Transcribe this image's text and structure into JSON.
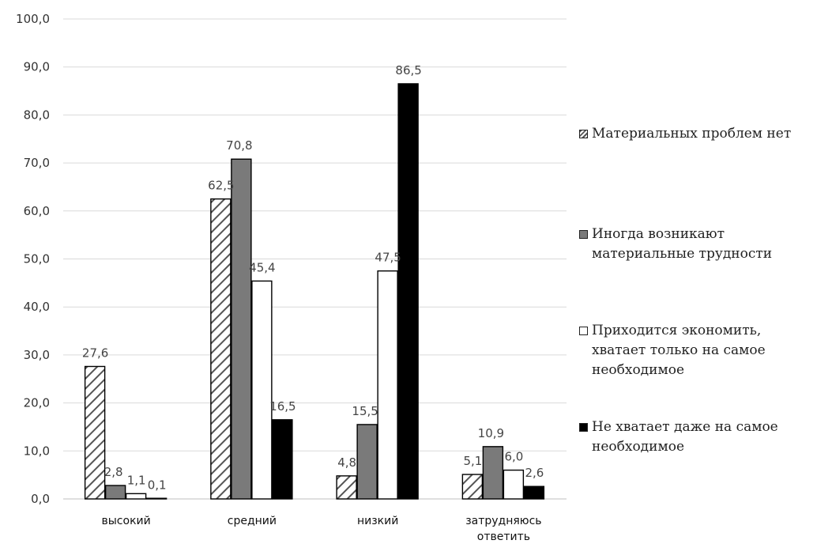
{
  "chart_data": {
    "type": "bar",
    "categories": [
      "высокий",
      "средний",
      "низкий",
      "затрудняюсь\nответить"
    ],
    "series": [
      {
        "name": "Материальных проблем нет",
        "values": [
          27.6,
          62.5,
          4.8,
          5.1
        ],
        "labels": [
          "27,6",
          "62,5",
          "4,8",
          "5,1"
        ],
        "pattern": "hatch",
        "color": "#ffffff"
      },
      {
        "name": "Иногда возникают\nматериальные трудности",
        "values": [
          2.8,
          70.8,
          15.5,
          10.9
        ],
        "labels": [
          "2,8",
          "70,8",
          "15,5",
          "10,9"
        ],
        "pattern": "solid",
        "color": "#7a7a7a"
      },
      {
        "name": "Приходится экономить,\nхватает только на самое\nнеобходимое",
        "values": [
          1.1,
          45.4,
          47.5,
          6.0
        ],
        "labels": [
          "1,1",
          "45,4",
          "47,5",
          "6,0"
        ],
        "pattern": "solid",
        "color": "#ffffff"
      },
      {
        "name": "Не хватает даже на самое\nнеобходимое",
        "values": [
          0.1,
          16.5,
          86.5,
          2.6
        ],
        "labels": [
          "0,1",
          "16,5",
          "86,5",
          "2,6"
        ],
        "pattern": "solid",
        "color": "#000000"
      }
    ],
    "yticks": [
      "0,0",
      "10,0",
      "20,0",
      "30,0",
      "40,0",
      "50,0",
      "60,0",
      "70,0",
      "80,0",
      "90,0",
      "100,0"
    ],
    "ylim": [
      0,
      100
    ],
    "grid": true,
    "legend_position": "right",
    "title": "",
    "xlabel": "",
    "ylabel": ""
  }
}
